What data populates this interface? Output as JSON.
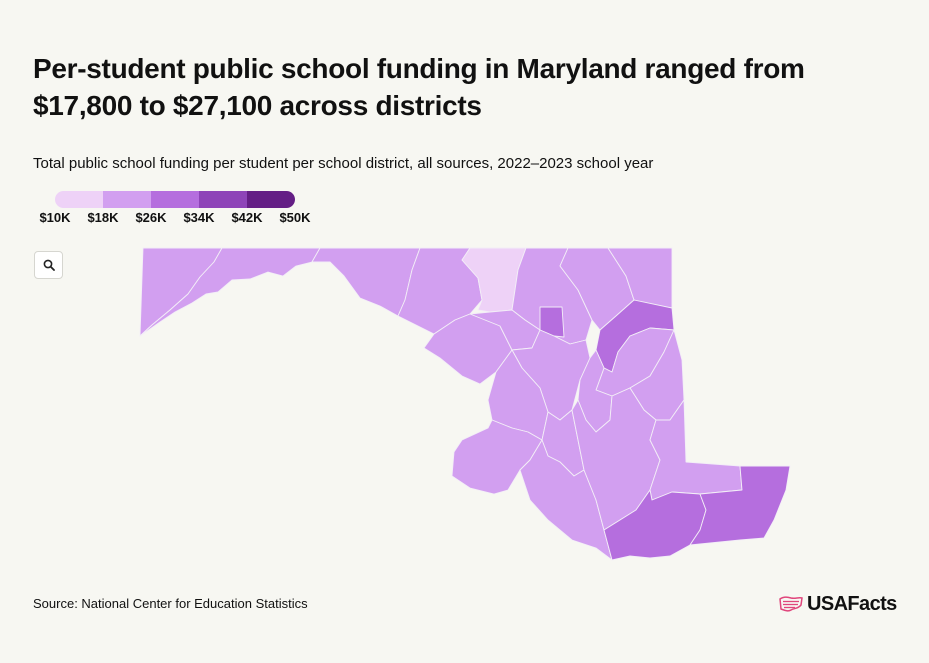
{
  "title": "Per-student public school funding in Maryland ranged from $17,800 to $27,100 across districts",
  "subtitle": "Total public school funding per student per school district, all sources, 2022–2023 school year",
  "legend": {
    "labels": [
      "$10K",
      "$18K",
      "$26K",
      "$34K",
      "$42K",
      "$50K"
    ],
    "colors": [
      "#eed2f7",
      "#d29ff0",
      "#b56ede",
      "#8e44b8",
      "#641e85"
    ]
  },
  "zoom_icon": "search-icon",
  "source": "Source: National Center for Education Statistics",
  "logo": {
    "text": "USAFacts",
    "icon": "usa-flag-map-icon",
    "icon_color": "#e0467c"
  },
  "colors": {
    "background": "#f7f7f2",
    "tier_lowest": "#eed2f7",
    "tier_low": "#d29ff0",
    "tier_mid": "#b56ede"
  }
}
